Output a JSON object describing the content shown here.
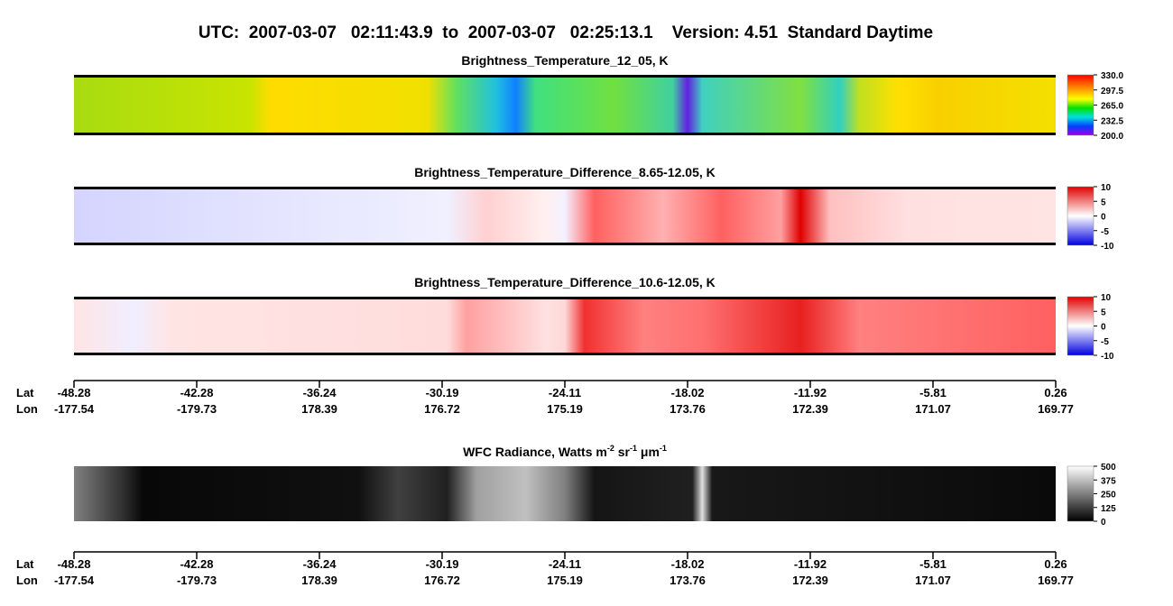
{
  "title": "UTC:  2007-03-07   02:11:43.9  to  2007-03-07   02:25:13.1    Version: 4.51  Standard Daytime",
  "panels": [
    {
      "title": "Brightness_Temperature_12_05, K",
      "colorbar": [
        "330.0",
        "297.5",
        "265.0",
        "232.5",
        "200.0"
      ]
    },
    {
      "title": "Brightness_Temperature_Difference_8.65-12.05, K",
      "colorbar": [
        "10",
        "5",
        "0",
        "-5",
        "-10"
      ]
    },
    {
      "title": "Brightness_Temperature_Difference_10.6-12.05, K",
      "colorbar": [
        "10",
        "5",
        "0",
        "-5",
        "-10"
      ]
    }
  ],
  "wfc": {
    "title": [
      "WFC Radiance, Watts m",
      "-2",
      " sr",
      "-1",
      " μm",
      "-1"
    ],
    "colorbar": [
      "500",
      "375",
      "250",
      "125",
      "0"
    ]
  },
  "axis": {
    "lat_label": "Lat",
    "lon_label": "Lon",
    "lat": [
      "-48.28",
      "-42.28",
      "-36.24",
      "-30.19",
      "-24.11",
      "-18.02",
      "-11.92",
      "-5.81",
      "0.26"
    ],
    "lon": [
      "-177.54",
      "-179.73",
      "178.39",
      "176.72",
      "175.19",
      "173.76",
      "172.39",
      "171.07",
      "169.77"
    ]
  }
}
